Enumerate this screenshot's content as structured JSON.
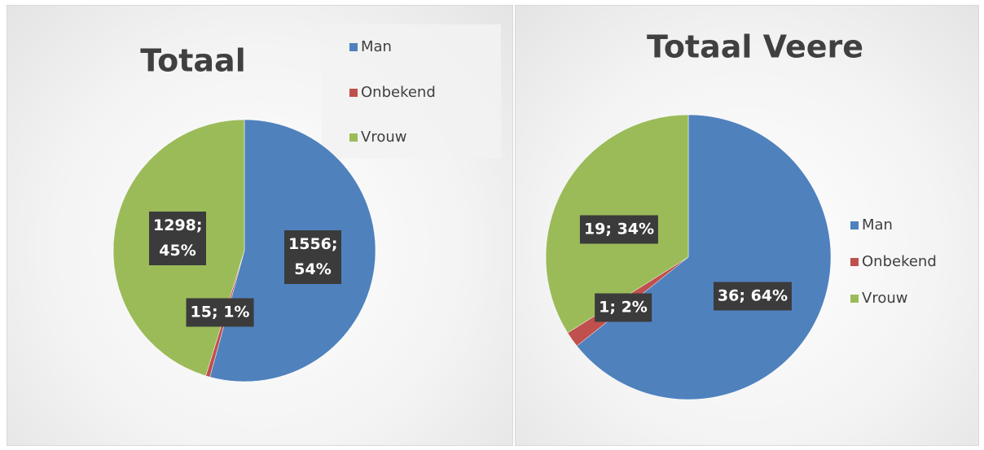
{
  "chart_data": [
    {
      "type": "pie",
      "title": "Totaal",
      "categories": [
        "Man",
        "Onbekend",
        "Vrouw"
      ],
      "values": [
        1556,
        15,
        1298
      ],
      "value_labels": [
        "1556; 54%",
        "15; 1%",
        "1298; 45%"
      ],
      "colors": [
        "#4f81bd",
        "#c0504d",
        "#9bbb59"
      ],
      "legend": "upper right"
    },
    {
      "type": "pie",
      "title": "Totaal Veere",
      "categories": [
        "Man",
        "Onbekend",
        "Vrouw"
      ],
      "values": [
        36,
        1,
        19
      ],
      "value_labels": [
        "36; 64%",
        "1; 2%",
        "19; 34%"
      ],
      "colors": [
        "#4f81bd",
        "#c0504d",
        "#9bbb59"
      ],
      "legend": "right"
    }
  ]
}
